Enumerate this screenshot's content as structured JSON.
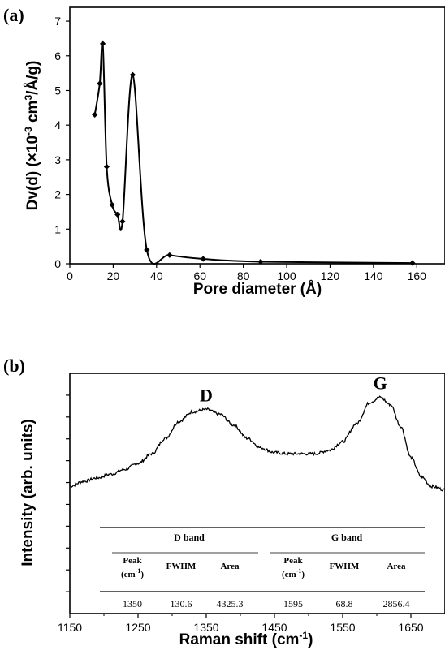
{
  "chart_data": [
    {
      "panel_label": "(a)",
      "type": "line",
      "xlabel": "Pore diameter (Å)",
      "ylabel_main": "Dv(d) (×10",
      "ylabel_exp": "-3",
      "ylabel_mid": " cm",
      "ylabel_exp2": "3",
      "ylabel_end": "/Å/g)",
      "xlim": [
        0,
        173
      ],
      "ylim": [
        0,
        7.4
      ],
      "xticks": [
        0,
        20,
        40,
        60,
        80,
        100,
        120,
        140,
        160
      ],
      "yticks": [
        0,
        1,
        2,
        3,
        4,
        5,
        6,
        7
      ],
      "x": [
        11.5,
        13.8,
        15.2,
        17.0,
        19.5,
        22.0,
        24.3,
        29.0,
        35.5,
        46.0,
        61.5,
        88.0,
        158.0
      ],
      "y": [
        4.3,
        5.2,
        6.35,
        2.8,
        1.7,
        1.42,
        1.22,
        5.45,
        0.4,
        0.25,
        0.14,
        0.06,
        0.02
      ],
      "marker": "diamond",
      "color": "#000000"
    },
    {
      "panel_label": "(b)",
      "type": "line",
      "xlabel_main": "Raman shift (cm",
      "xlabel_exp": "-1",
      "xlabel_end": ")",
      "ylabel": "Intensity (arb. units)",
      "xlim": [
        1150,
        1700
      ],
      "ylim": [
        0,
        1
      ],
      "xticks": [
        1150,
        1250,
        1350,
        1450,
        1550,
        1650
      ],
      "y_ticks_unlabeled": 10,
      "x": [
        1150,
        1170,
        1190,
        1210,
        1230,
        1250,
        1270,
        1290,
        1310,
        1330,
        1350,
        1370,
        1390,
        1410,
        1430,
        1450,
        1470,
        1490,
        1510,
        1530,
        1550,
        1570,
        1590,
        1605,
        1620,
        1635,
        1650,
        1665,
        1680,
        1700
      ],
      "y": [
        0.53,
        0.55,
        0.565,
        0.58,
        0.6,
        0.625,
        0.665,
        0.73,
        0.8,
        0.84,
        0.85,
        0.83,
        0.785,
        0.73,
        0.69,
        0.67,
        0.665,
        0.665,
        0.665,
        0.68,
        0.715,
        0.79,
        0.88,
        0.9,
        0.87,
        0.78,
        0.65,
        0.57,
        0.53,
        0.515
      ],
      "annotations": [
        {
          "text": "D",
          "x": 1350,
          "y": 0.85
        },
        {
          "text": "G",
          "x": 1605,
          "y": 0.9
        }
      ],
      "table": {
        "groups": [
          "D band",
          "G band"
        ],
        "columns": [
          "Peak",
          "FWHM",
          "Area",
          "Peak",
          "FWHM",
          "Area"
        ],
        "column_sub": [
          "(cm",
          "",
          "",
          "(cm",
          "",
          ""
        ],
        "column_sub_exp": "-1",
        "column_sub_end": ")",
        "rows": [
          [
            "1350",
            "130.6",
            "4325.3",
            "1595",
            "68.8",
            "2856.4"
          ]
        ]
      }
    }
  ]
}
